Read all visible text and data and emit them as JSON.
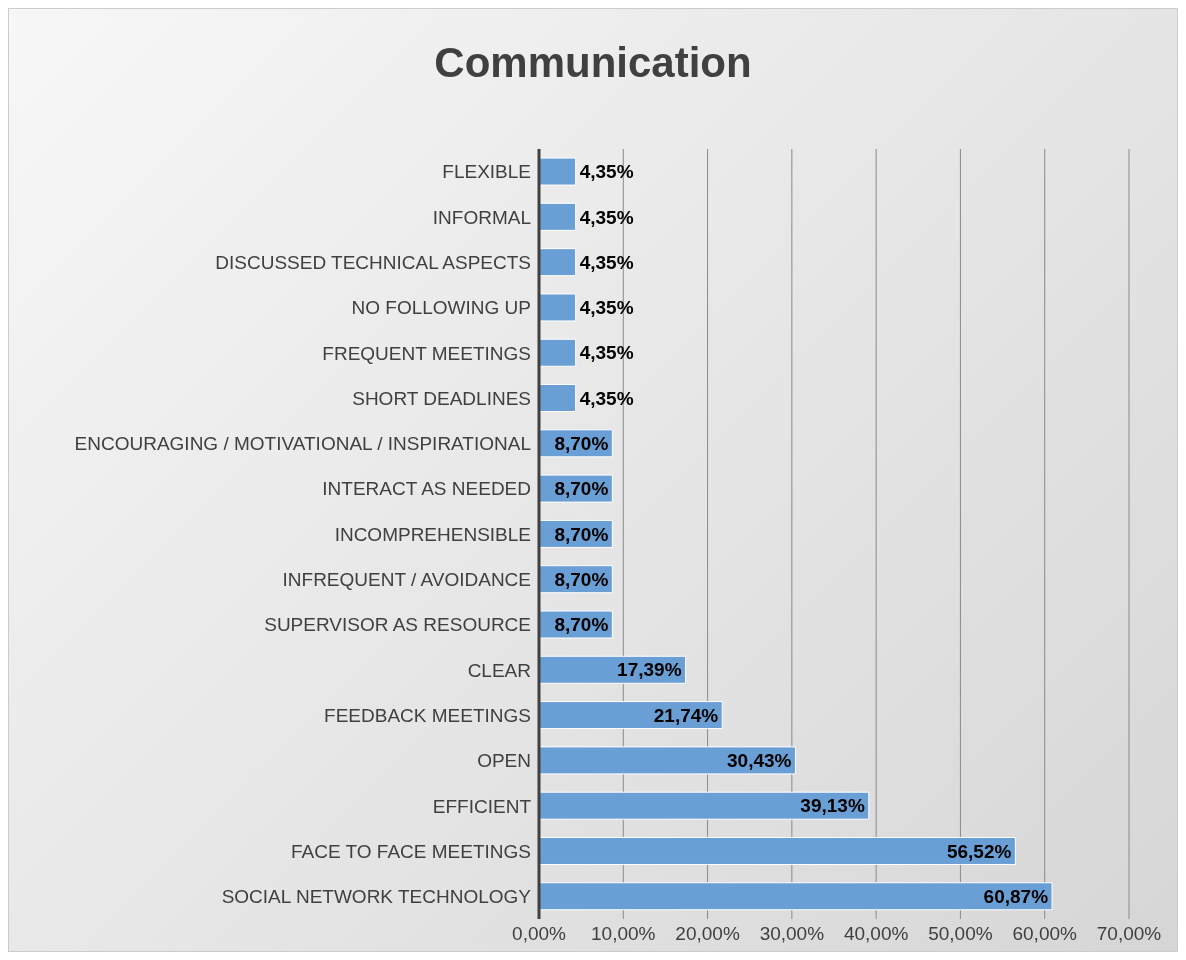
{
  "chart_data": {
    "type": "bar",
    "orientation": "horizontal",
    "title": "Communication",
    "categories": [
      "FLEXIBLE",
      "INFORMAL",
      "DISCUSSED TECHNICAL ASPECTS",
      "NO FOLLOWING UP",
      "FREQUENT MEETINGS",
      "SHORT DEADLINES",
      "ENCOURAGING / MOTIVATIONAL / INSPIRATIONAL",
      "INTERACT AS NEEDED",
      "INCOMPREHENSIBLE",
      "INFREQUENT / AVOIDANCE",
      "SUPERVISOR AS RESOURCE",
      "CLEAR",
      "FEEDBACK MEETINGS",
      "OPEN",
      "EFFICIENT",
      "FACE TO FACE MEETINGS",
      "SOCIAL NETWORK TECHNOLOGY"
    ],
    "values": [
      4.35,
      4.35,
      4.35,
      4.35,
      4.35,
      4.35,
      8.7,
      8.7,
      8.7,
      8.7,
      8.7,
      17.39,
      21.74,
      30.43,
      39.13,
      56.52,
      60.87
    ],
    "value_labels": [
      "4,35%",
      "4,35%",
      "4,35%",
      "4,35%",
      "4,35%",
      "4,35%",
      "8,70%",
      "8,70%",
      "8,70%",
      "8,70%",
      "8,70%",
      "17,39%",
      "21,74%",
      "30,43%",
      "39,13%",
      "56,52%",
      "60,87%"
    ],
    "color": "#6a9fd6",
    "xlim": [
      0,
      70
    ],
    "xticks": [
      {
        "value": 0,
        "label": "0,00%"
      },
      {
        "value": 10,
        "label": "10,00%"
      },
      {
        "value": 20,
        "label": "20,00%"
      },
      {
        "value": 30,
        "label": "30,00%"
      },
      {
        "value": 40,
        "label": "40,00%"
      },
      {
        "value": 50,
        "label": "50,00%"
      },
      {
        "value": 60,
        "label": "60,00%"
      },
      {
        "value": 70,
        "label": "70,00%"
      }
    ],
    "grid": "x",
    "legend": false
  }
}
